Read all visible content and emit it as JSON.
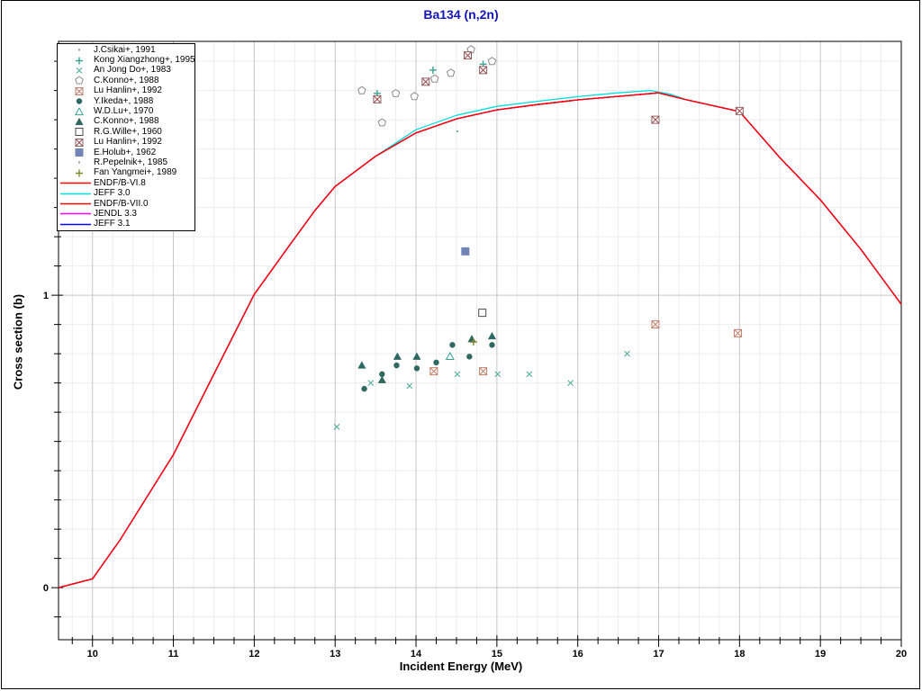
{
  "page": {
    "title": "Ba134 (n,2n)"
  },
  "chart_data": {
    "type": "scatter",
    "title": "Ba134 (n,2n)",
    "title_color": "#1414be",
    "xlabel": "Incident Energy (MeV)",
    "ylabel": "Cross section (b)",
    "xlim": [
      9.58,
      20
    ],
    "ylim": [
      -0.178,
      1.868
    ],
    "x_major_ticks": [
      10,
      11,
      12,
      13,
      14,
      15,
      16,
      17,
      18,
      19,
      20
    ],
    "x_minor_step": 0.25,
    "y_major_ticks": [
      0,
      1
    ],
    "y_minor_step": 0.1,
    "grid": "on",
    "legend_position": "top-left",
    "series": [
      {
        "label": "J.Csikai+, 1991",
        "marker": "dot",
        "color": "#7aa8a2",
        "points": [
          [
            14.51,
            1.56
          ]
        ]
      },
      {
        "label": "Kong Xiangzhong+, 1995",
        "marker": "plus",
        "color": "#3aa295",
        "points": [
          [
            13.52,
            1.69
          ],
          [
            14.21,
            1.77
          ],
          [
            14.83,
            1.79
          ]
        ]
      },
      {
        "label": "An Jong Do+, 1983",
        "marker": "x",
        "color": "#4aa896",
        "points": [
          [
            13.02,
            0.55
          ],
          [
            13.44,
            0.7
          ],
          [
            13.92,
            0.69
          ],
          [
            14.51,
            0.73
          ],
          [
            15.01,
            0.73
          ],
          [
            15.4,
            0.73
          ],
          [
            15.91,
            0.7
          ],
          [
            16.61,
            0.8
          ]
        ]
      },
      {
        "label": "C.Konno+, 1988",
        "marker": "pentagon-open",
        "color": "#8c8c8c",
        "points": [
          [
            13.33,
            1.7
          ],
          [
            13.58,
            1.59
          ],
          [
            13.75,
            1.69
          ],
          [
            13.98,
            1.68
          ],
          [
            14.23,
            1.74
          ],
          [
            14.43,
            1.76
          ],
          [
            14.68,
            1.84
          ],
          [
            14.94,
            1.8
          ]
        ]
      },
      {
        "label": "Lu Hanlin+, 1992",
        "marker": "square-crossed",
        "color": "#c2806b",
        "cross": "#c2806b",
        "points": [
          [
            14.22,
            0.74
          ],
          [
            14.83,
            0.74
          ],
          [
            16.96,
            0.9
          ],
          [
            17.98,
            0.87
          ]
        ]
      },
      {
        "label": "Y.Ikeda+, 1988",
        "marker": "circle-filled",
        "color": "#2f6862",
        "points": [
          [
            13.36,
            0.68
          ],
          [
            13.58,
            0.73
          ],
          [
            13.76,
            0.76
          ],
          [
            14.01,
            0.75
          ],
          [
            14.25,
            0.77
          ],
          [
            14.45,
            0.83
          ],
          [
            14.66,
            0.79
          ],
          [
            14.94,
            0.83
          ]
        ]
      },
      {
        "label": "W.D.Lu+, 1970",
        "marker": "triangle-open",
        "color": "#3aa28f",
        "points": [
          [
            14.42,
            0.79
          ]
        ]
      },
      {
        "label": "C.Konno+, 1988",
        "marker": "triangle-filled",
        "color": "#2f6862",
        "points": [
          [
            13.33,
            0.76
          ],
          [
            13.58,
            0.71
          ],
          [
            13.77,
            0.79
          ],
          [
            14.01,
            0.79
          ],
          [
            14.69,
            0.85
          ],
          [
            14.94,
            0.86
          ]
        ]
      },
      {
        "label": "R.G.Wille+, 1960",
        "marker": "square-open",
        "color": "#4a4a4a",
        "points": [
          [
            14.82,
            0.94
          ]
        ]
      },
      {
        "label": "Lu Hanlin+, 1992",
        "marker": "square-crossed",
        "color": "#8a6363",
        "cross": "#9c4a4a",
        "points": [
          [
            13.52,
            1.67
          ],
          [
            14.12,
            1.73
          ],
          [
            14.64,
            1.82
          ],
          [
            14.83,
            1.77
          ],
          [
            16.96,
            1.6
          ],
          [
            18.0,
            1.63
          ]
        ]
      },
      {
        "label": "E.Holub+, 1962",
        "marker": "square-filled",
        "color": "#7283b6",
        "points": [
          [
            14.61,
            1.15
          ]
        ]
      },
      {
        "label": "R.Pepelnik+, 1985",
        "marker": "dot",
        "color": "#8f9b9b",
        "points": []
      },
      {
        "label": "Fan Yangmei+, 1989",
        "marker": "plus",
        "color": "#85852f",
        "points": [
          [
            14.71,
            0.84
          ]
        ]
      }
    ],
    "curves": [
      {
        "label": "ENDF/B-VI.8",
        "color": "#ff0000",
        "points": [
          [
            9.58,
            0.0
          ],
          [
            10.0,
            0.03
          ],
          [
            10.34,
            0.163
          ],
          [
            11.0,
            0.455
          ],
          [
            11.5,
            0.73
          ],
          [
            12.0,
            1.003
          ],
          [
            12.4,
            1.157
          ],
          [
            12.75,
            1.29
          ],
          [
            13.0,
            1.372
          ],
          [
            13.5,
            1.475
          ],
          [
            14.0,
            1.555
          ],
          [
            14.5,
            1.603
          ],
          [
            15.0,
            1.634
          ],
          [
            15.5,
            1.652
          ],
          [
            16.0,
            1.668
          ],
          [
            16.5,
            1.68
          ],
          [
            17.0,
            1.692
          ],
          [
            17.35,
            1.668
          ],
          [
            18.0,
            1.628
          ],
          [
            18.5,
            1.47
          ],
          [
            19.0,
            1.326
          ],
          [
            19.5,
            1.157
          ],
          [
            20.0,
            0.969
          ]
        ]
      },
      {
        "label": "JEFF 3.0",
        "color": "#00dede",
        "points": [
          [
            13.5,
            1.475
          ],
          [
            14.0,
            1.566
          ],
          [
            14.5,
            1.615
          ],
          [
            15.0,
            1.646
          ],
          [
            15.5,
            1.663
          ],
          [
            16.0,
            1.679
          ],
          [
            16.5,
            1.692
          ],
          [
            16.9,
            1.7
          ],
          [
            17.15,
            1.687
          ],
          [
            17.35,
            1.668
          ]
        ]
      },
      {
        "label": "ENDF/B-VII.0",
        "color": "#ff0000",
        "points_same_as": "ENDF/B-VI.8"
      },
      {
        "label": "JENDL 3.3",
        "color": "#ff00ff",
        "points_same_as": "ENDF/B-VI.8"
      },
      {
        "label": "JEFF 3.1",
        "color": "#0000ff",
        "points_same_as": "ENDF/B-VI.8"
      }
    ],
    "curve_draw_order": [
      "JENDL 3.3",
      "JEFF 3.1",
      "JEFF 3.0",
      "ENDF/B-VI.8",
      "ENDF/B-VII.0"
    ]
  }
}
